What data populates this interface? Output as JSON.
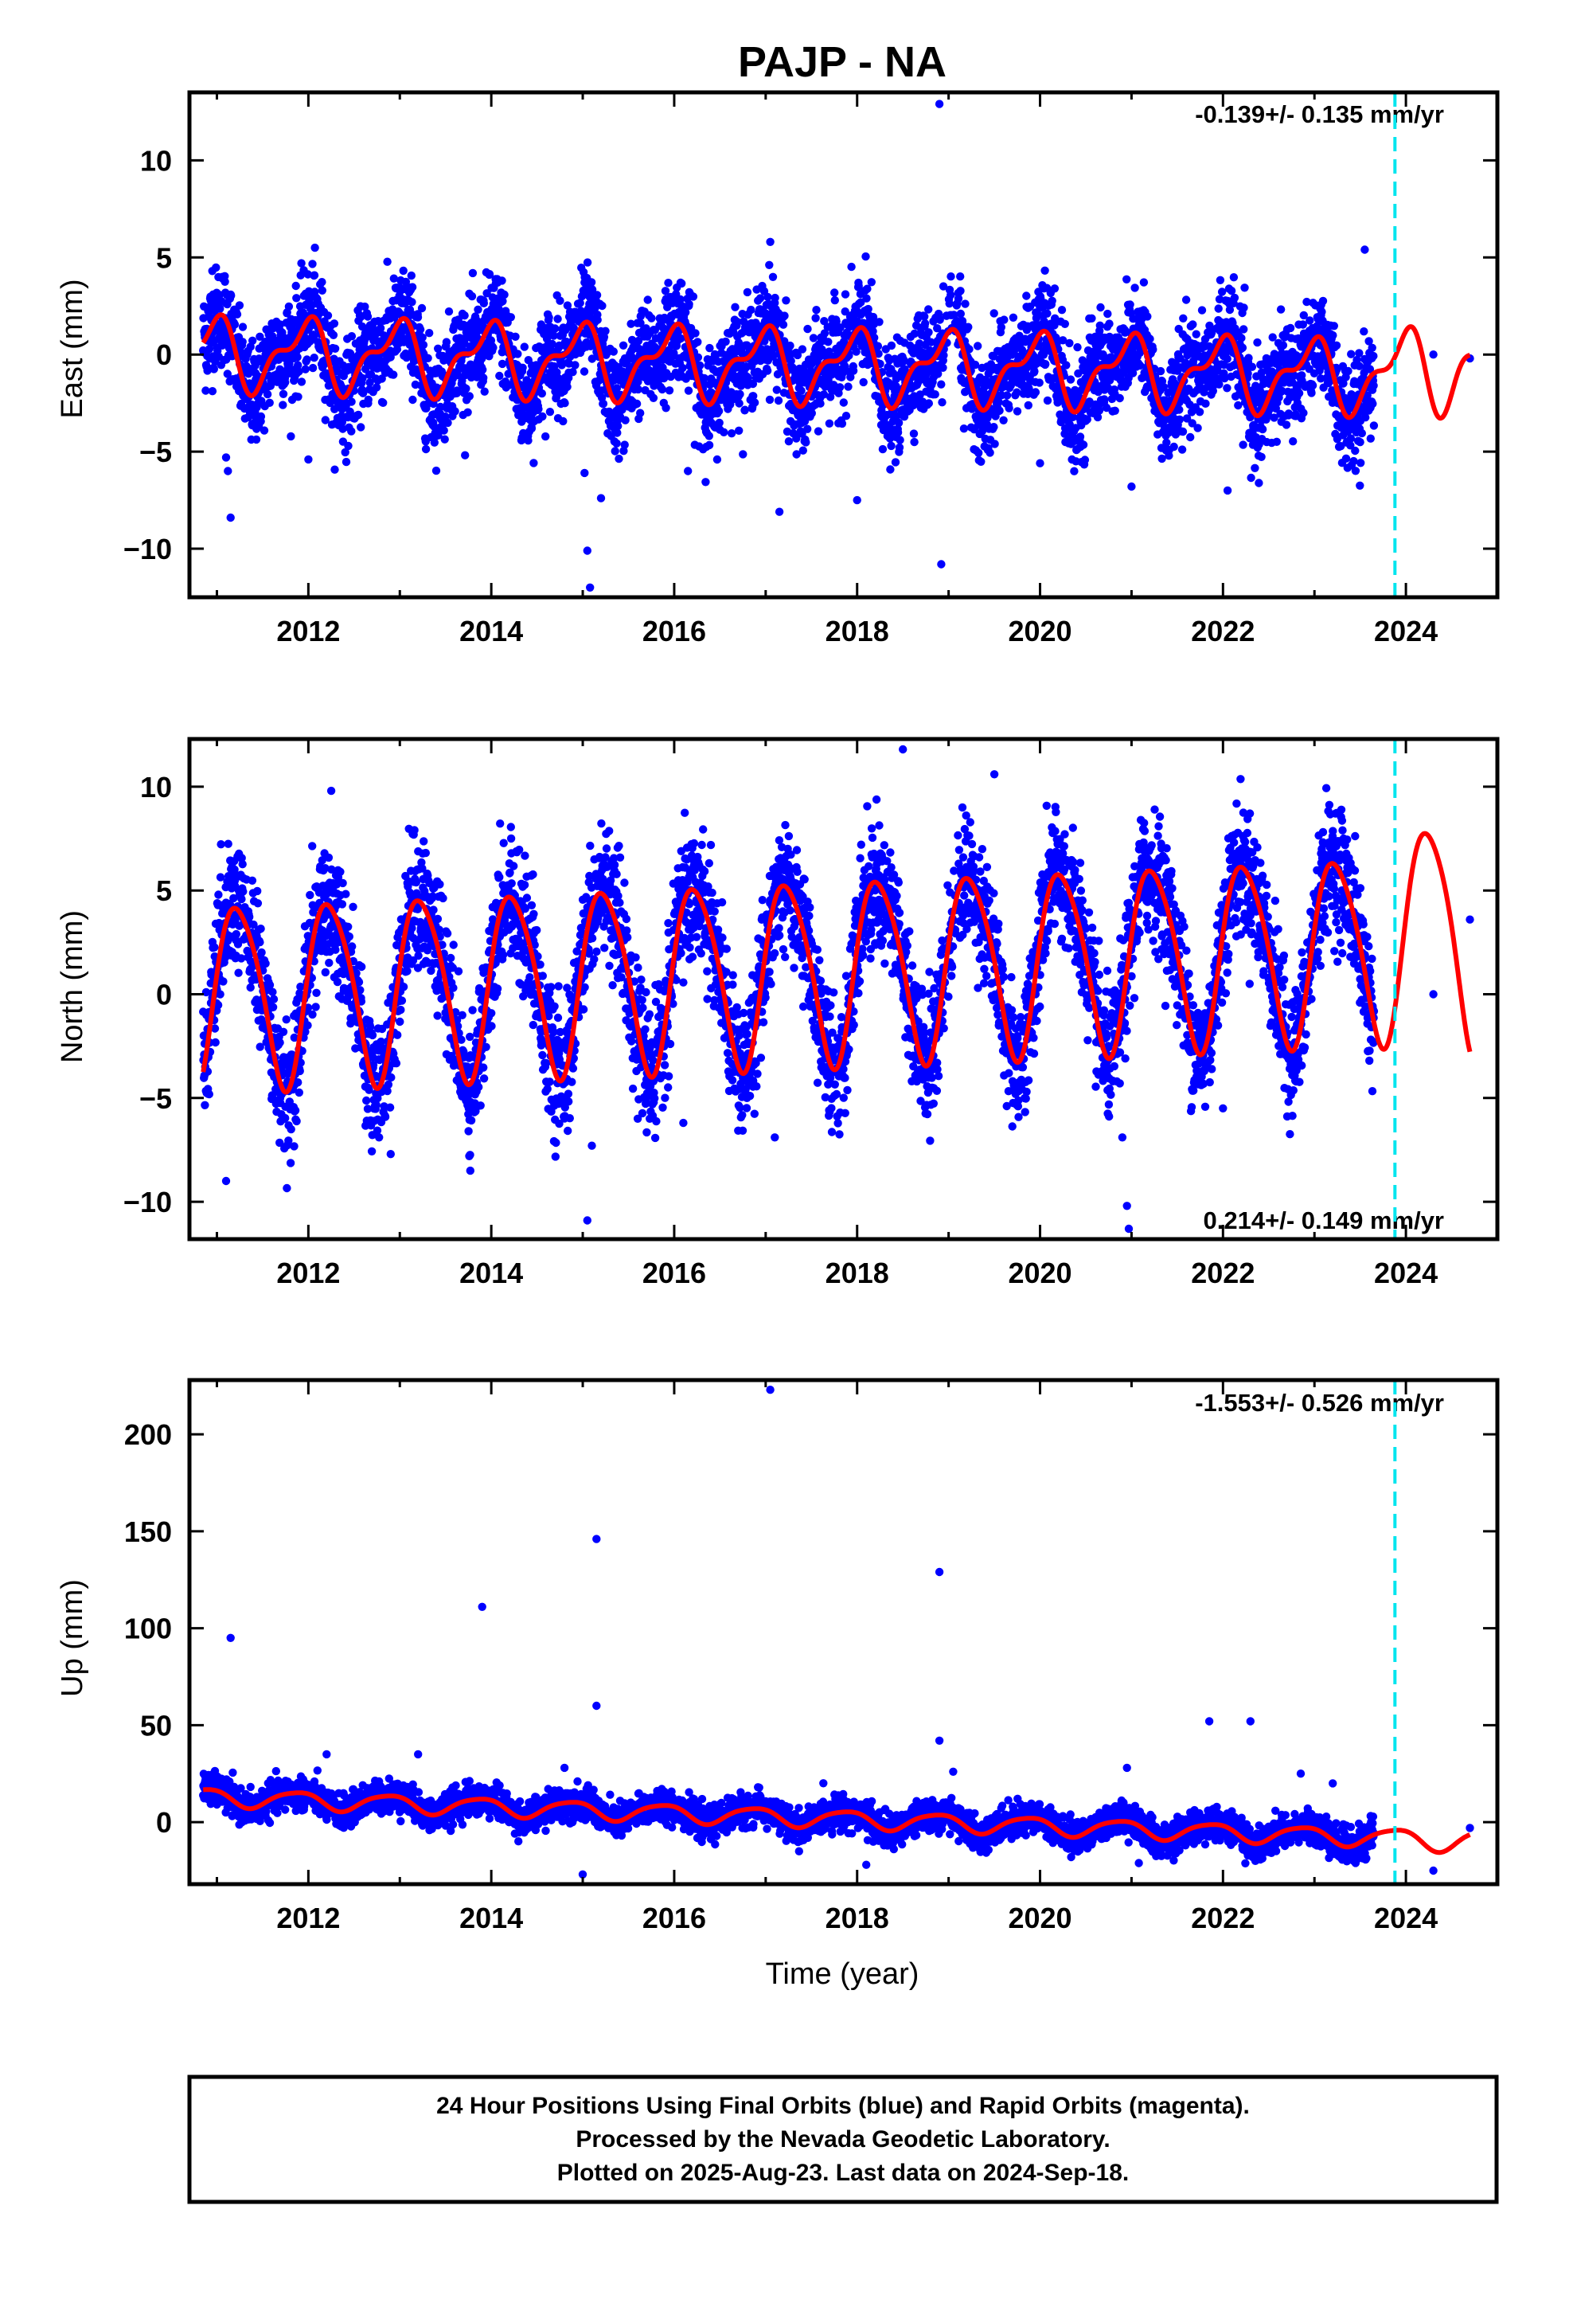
{
  "title": "PAJP - NA",
  "footer": {
    "lines": [
      "24 Hour Positions Using Final Orbits (blue) and Rapid Orbits (magenta).",
      "Processed by the Nevada Geodetic Laboratory.",
      "Plotted on 2025-Aug-23. Last data on 2024-Sep-18."
    ]
  },
  "colors": {
    "points": "#0000ff",
    "model": "#ff0000",
    "marker": "#00e5ee"
  },
  "chart_data": [
    {
      "type": "scatter",
      "ylabel": "East (mm)",
      "xlabel": "",
      "rate": "-0.139+/- 0.135 mm/yr",
      "rate_position": "top-right",
      "xlim": [
        2010.7,
        2025.0
      ],
      "ylim": [
        -12.5,
        13.5
      ],
      "xticks": [
        2012,
        2014,
        2016,
        2018,
        2020,
        2022,
        2024
      ],
      "yticks": [
        -10,
        -5,
        0,
        5,
        10
      ],
      "vline_x": 2023.88,
      "data_end": 2023.65,
      "model": {
        "annual_amp": 1.6,
        "semi_amp": 0.8,
        "annual_phase": 1.9,
        "semi_phase": 0.4,
        "trend_start": 0.1,
        "trend_end": -1.1,
        "pred_slope": 0.75
      },
      "scatter_sd": 1.3,
      "tail_points": [
        [
          2024.3,
          0.0
        ],
        [
          2024.7,
          -0.2
        ]
      ],
      "outliers": [
        [
          2010.95,
          4.3
        ],
        [
          2011.1,
          -5.3
        ],
        [
          2011.12,
          -6.0
        ],
        [
          2011.15,
          -8.4
        ],
        [
          2012.0,
          -5.4
        ],
        [
          2015.02,
          -6.1
        ],
        [
          2015.05,
          -10.1
        ],
        [
          2015.08,
          -12.0
        ],
        [
          2015.2,
          -7.4
        ],
        [
          2016.15,
          -6.0
        ],
        [
          2017.15,
          -8.1
        ],
        [
          2018.0,
          -7.5
        ],
        [
          2018.9,
          12.9
        ],
        [
          2018.92,
          -10.8
        ],
        [
          2017.05,
          5.8
        ],
        [
          2020.0,
          -5.6
        ],
        [
          2021.0,
          -6.8
        ],
        [
          2022.05,
          -7.0
        ],
        [
          2023.55,
          5.4
        ]
      ]
    },
    {
      "type": "scatter",
      "ylabel": "North (mm)",
      "xlabel": "",
      "rate": "0.214+/- 0.149 mm/yr",
      "rate_position": "bottom-right",
      "xlim": [
        2010.7,
        2025.0
      ],
      "ylim": [
        -11.8,
        12.3
      ],
      "xticks": [
        2012,
        2014,
        2016,
        2018,
        2020,
        2022,
        2024
      ],
      "yticks": [
        -10,
        -5,
        0,
        5,
        10
      ],
      "vline_x": 2023.88,
      "data_end": 2023.65,
      "model": {
        "annual_amp": 4.4,
        "semi_amp": 0.6,
        "annual_phase": 0.1,
        "semi_phase": 1.0,
        "trend_start": 0.0,
        "trend_end": 2.3,
        "pred_slope": 1.05
      },
      "scatter_sd": 1.5,
      "tail_points": [
        [
          2024.3,
          0.0
        ],
        [
          2024.7,
          3.6
        ]
      ],
      "outliers": [
        [
          2011.1,
          -9.0
        ],
        [
          2015.05,
          -10.9
        ],
        [
          2015.1,
          -7.3
        ],
        [
          2016.1,
          -6.2
        ],
        [
          2017.1,
          -6.9
        ],
        [
          2018.5,
          11.8
        ],
        [
          2019.5,
          10.6
        ],
        [
          2020.95,
          -10.2
        ],
        [
          2020.97,
          -11.3
        ],
        [
          2020.9,
          -6.9
        ],
        [
          2012.9,
          -7.7
        ],
        [
          2022.0,
          -5.5
        ]
      ]
    },
    {
      "type": "scatter",
      "ylabel": "Up (mm)",
      "xlabel": "Time (year)",
      "rate": "-1.553+/- 0.526 mm/yr",
      "rate_position": "top-right",
      "xlim": [
        2010.7,
        2025.0
      ],
      "ylim": [
        -32,
        228
      ],
      "xticks": [
        2012,
        2014,
        2016,
        2018,
        2020,
        2022,
        2024
      ],
      "yticks": [
        0,
        50,
        100,
        150,
        200
      ],
      "vline_x": 2023.88,
      "data_end": 2023.65,
      "model": {
        "annual_amp": 4.5,
        "semi_amp": 0.8,
        "annual_phase": 2.4,
        "semi_phase": 0.5,
        "trend_start": 13.0,
        "trend_end": -8.0,
        "pred_slope": -1.55
      },
      "scatter_sd": 4.0,
      "tail_points": [
        [
          2024.3,
          -25.0
        ],
        [
          2024.7,
          -3.0
        ]
      ],
      "outliers": [
        [
          2011.15,
          95
        ],
        [
          2012.2,
          35
        ],
        [
          2013.2,
          35
        ],
        [
          2013.9,
          111
        ],
        [
          2014.8,
          28
        ],
        [
          2015.15,
          146
        ],
        [
          2015.15,
          60
        ],
        [
          2017.05,
          223
        ],
        [
          2018.9,
          129
        ],
        [
          2018.9,
          42
        ],
        [
          2019.05,
          26
        ],
        [
          2020.95,
          28
        ],
        [
          2021.85,
          52
        ],
        [
          2022.3,
          52
        ],
        [
          2022.85,
          25
        ],
        [
          2023.2,
          20
        ],
        [
          2015.0,
          -27
        ],
        [
          2018.1,
          -22
        ]
      ]
    }
  ]
}
